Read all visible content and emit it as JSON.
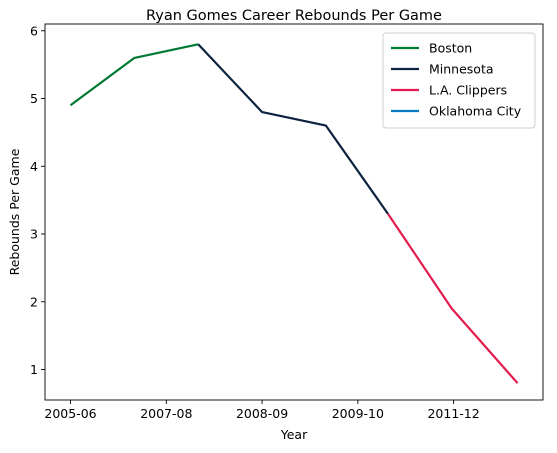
{
  "chart_data": {
    "type": "line",
    "title": "Ryan Gomes Career Rebounds Per Game",
    "xlabel": "Year",
    "ylabel": "Rebounds Per Game",
    "x_ticks": [
      {
        "x": 0,
        "label": "2005-06"
      },
      {
        "x": 1.5,
        "label": "2007-08"
      },
      {
        "x": 3,
        "label": "2008-09"
      },
      {
        "x": 4.5,
        "label": "2009-10"
      },
      {
        "x": 6,
        "label": "2011-12"
      }
    ],
    "y_ticks": [
      1,
      2,
      3,
      4,
      5,
      6
    ],
    "xlim": [
      -0.4,
      7.4
    ],
    "ylim": [
      0.55,
      6.1
    ],
    "grid": false,
    "legend_position": "top-right",
    "series": [
      {
        "name": "Boston",
        "color": "#007A33",
        "points": [
          [
            0,
            4.9
          ],
          [
            1,
            5.6
          ],
          [
            2,
            5.8
          ]
        ]
      },
      {
        "name": "Minnesota",
        "color": "#0C2340",
        "points": [
          [
            2,
            5.8
          ],
          [
            3,
            4.8
          ],
          [
            4,
            4.6
          ],
          [
            4.97,
            3.3
          ]
        ]
      },
      {
        "name": "L.A. Clippers",
        "color": "#E31B4E",
        "points": [
          [
            4.97,
            3.3
          ],
          [
            5.97,
            1.9
          ],
          [
            7,
            0.8
          ]
        ]
      },
      {
        "name": "Oklahoma City",
        "color": "#007AC1",
        "points": []
      }
    ]
  }
}
